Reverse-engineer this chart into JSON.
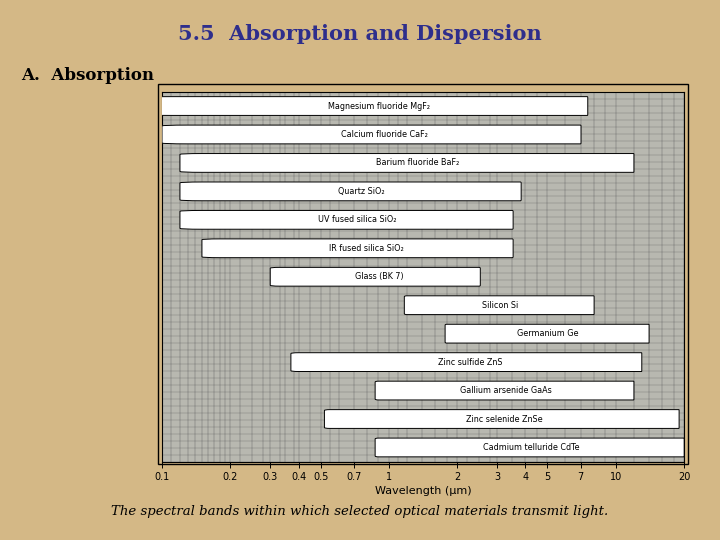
{
  "title": "5.5  Absorption and Dispersion",
  "subtitle": "A.  Absorption",
  "caption": "The spectral bands within which selected optical materials transmit light.",
  "background_color": "#d4b886",
  "title_color": "#2e2e8c",
  "subtitle_color": "#000000",
  "caption_color": "#000000",
  "chart_bg": "#b8b8b0",
  "xlabel": "Wavelength (μm)",
  "xticks": [
    0.1,
    0.2,
    0.3,
    0.4,
    0.5,
    0.7,
    1,
    2,
    3,
    4,
    5,
    7,
    10,
    20
  ],
  "xtick_labels": [
    "0.1",
    "0.2",
    "0.3",
    "0.4",
    "0.5",
    "0.7",
    "1",
    "2",
    "3",
    "4",
    "5",
    "7",
    "10",
    "20"
  ],
  "materials": [
    {
      "name": "Magnesium fluoride MgF₂",
      "xmin": 0.11,
      "xmax": 7.5
    },
    {
      "name": "Calcium fluoride CaF₂",
      "xmin": 0.13,
      "xmax": 7.0
    },
    {
      "name": "Barium fluoride BaF₂",
      "xmin": 0.15,
      "xmax": 12.0
    },
    {
      "name": "Quartz SiO₂",
      "xmin": 0.15,
      "xmax": 3.8
    },
    {
      "name": "UV fused silica SiO₂",
      "xmin": 0.15,
      "xmax": 3.5
    },
    {
      "name": "IR fused silica SiO₂",
      "xmin": 0.18,
      "xmax": 3.5
    },
    {
      "name": "Glass (BK 7)",
      "xmin": 0.33,
      "xmax": 2.5
    },
    {
      "name": "Silicon Si",
      "xmin": 1.2,
      "xmax": 8.0
    },
    {
      "name": "Germanium Ge",
      "xmin": 1.8,
      "xmax": 14.0
    },
    {
      "name": "Zinc sulfide ZnS",
      "xmin": 0.4,
      "xmax": 13.0
    },
    {
      "name": "Gallium arsenide GaAs",
      "xmin": 0.9,
      "xmax": 12.0
    },
    {
      "name": "Zinc selenide ZnSe",
      "xmin": 0.55,
      "xmax": 19.0
    },
    {
      "name": "Cadmium telluride CdTe",
      "xmin": 0.9,
      "xmax": 20.0
    }
  ],
  "gridlines_v": [
    0.1,
    0.11,
    0.12,
    0.13,
    0.14,
    0.15,
    0.16,
    0.17,
    0.18,
    0.19,
    0.2,
    0.22,
    0.25,
    0.28,
    0.3,
    0.33,
    0.35,
    0.38,
    0.4,
    0.45,
    0.5,
    0.55,
    0.6,
    0.7,
    0.8,
    0.9,
    1.0,
    1.1,
    1.2,
    1.4,
    1.6,
    1.8,
    2.0,
    2.2,
    2.5,
    2.8,
    3.0,
    3.5,
    4.0,
    4.5,
    5.0,
    6.0,
    7.0,
    8.0,
    9.0,
    10.0,
    12.0,
    14.0,
    16.0,
    18.0,
    20.0
  ]
}
